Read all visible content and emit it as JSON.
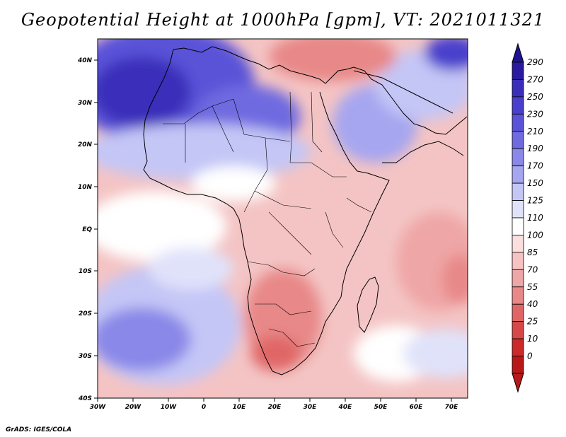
{
  "title": "Geopotential Height at 1000hPa [gpm], VT: 2021011321",
  "credit": "GrADS: IGES/COLA",
  "map": {
    "variable": "Geopotential Height",
    "level": "1000hPa",
    "units": "gpm",
    "valid_time": "2021011321",
    "lon_labels": [
      "30W",
      "20W",
      "10W",
      "0",
      "10E",
      "20E",
      "30E",
      "40E",
      "50E",
      "60E",
      "70E"
    ],
    "lat_labels": [
      "40N",
      "30N",
      "20N",
      "10N",
      "EQ",
      "10S",
      "20S",
      "30S",
      "40S"
    ]
  },
  "colorbar": {
    "levels": [
      "290",
      "270",
      "250",
      "230",
      "210",
      "190",
      "170",
      "150",
      "125",
      "110",
      "100",
      "85",
      "70",
      "55",
      "40",
      "25",
      "10",
      "0"
    ],
    "colors": [
      "#2a1a9e",
      "#3a2dba",
      "#4a3fcc",
      "#5a52d8",
      "#6f6ae0",
      "#8a88e8",
      "#a6a6f0",
      "#c4c6f6",
      "#e0e2fa",
      "#ffffff",
      "#fbdede",
      "#f6c2c2",
      "#efa6a6",
      "#e88888",
      "#e06666",
      "#d84848",
      "#cc2a2a",
      "#b81818"
    ]
  }
}
